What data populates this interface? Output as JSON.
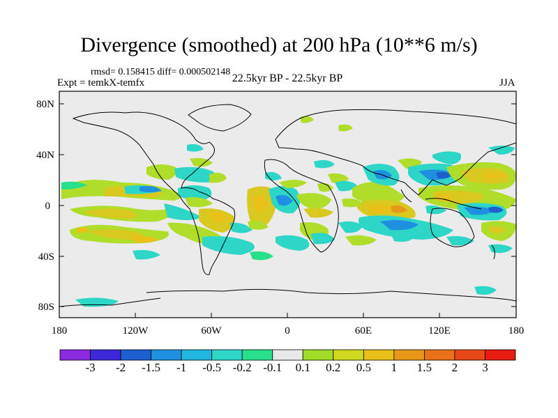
{
  "title": "Divergence (smoothed) at 200 hPa (10**6 m/s)",
  "stats_text": "rmsd= 0.158415 diff= 0.000502148",
  "experiment_text": "Expt = temkX-temfx",
  "period_text": "22.5kyr BP - 22.5kyr BP",
  "season_text": "JJA",
  "axes": {
    "lat_ticks": [
      "80N",
      "40N",
      "0",
      "40S",
      "80S"
    ],
    "lon_ticks": [
      "180",
      "120W",
      "60W",
      "0",
      "60E",
      "120E",
      "180"
    ]
  },
  "colorbar": {
    "colors": [
      "#8a2be2",
      "#3c28d8",
      "#1e5fd0",
      "#1f8fe0",
      "#20b8e0",
      "#2ed6c8",
      "#28e08a",
      "#e8e8e8",
      "#a0dc28",
      "#d0d820",
      "#e8c018",
      "#e89818",
      "#e87018",
      "#e84818",
      "#e81c10"
    ],
    "labels": [
      "-3",
      "-2",
      "-1.5",
      "-1",
      "-0.5",
      "-0.2",
      "-0.1",
      "0.1",
      "0.2",
      "0.5",
      "1",
      "1.5",
      "2",
      "3"
    ]
  }
}
